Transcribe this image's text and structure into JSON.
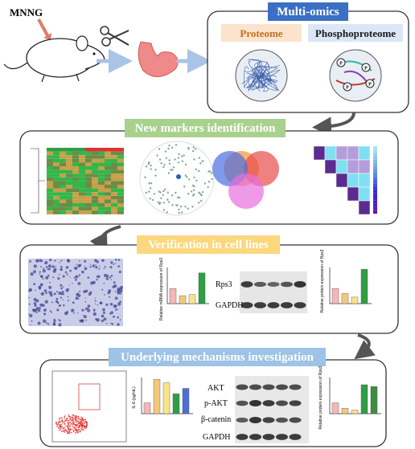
{
  "mnng": "MNNG",
  "multi_omics": {
    "title": "Multi-omics",
    "proteome": "Proteome",
    "phosphoproteome": "Phosphoproteome"
  },
  "markers": {
    "title": "New markers identification"
  },
  "verification": {
    "title": "Verification in cell lines",
    "blots": [
      "Rps3",
      "GAPDH"
    ],
    "mrna_axis": "Relative mRNA expression of Rps3",
    "protein_axis": "Relative protein expression of Rps3"
  },
  "mechanisms": {
    "title": "Underlying mechanisms investigation",
    "blots": [
      "AKT",
      "p-AKT",
      "β-catenin",
      "GAPDH"
    ],
    "il6_axis": "IL-6 (pg/mL)",
    "protein_axis": "Relative protein expression of Rps3"
  }
}
